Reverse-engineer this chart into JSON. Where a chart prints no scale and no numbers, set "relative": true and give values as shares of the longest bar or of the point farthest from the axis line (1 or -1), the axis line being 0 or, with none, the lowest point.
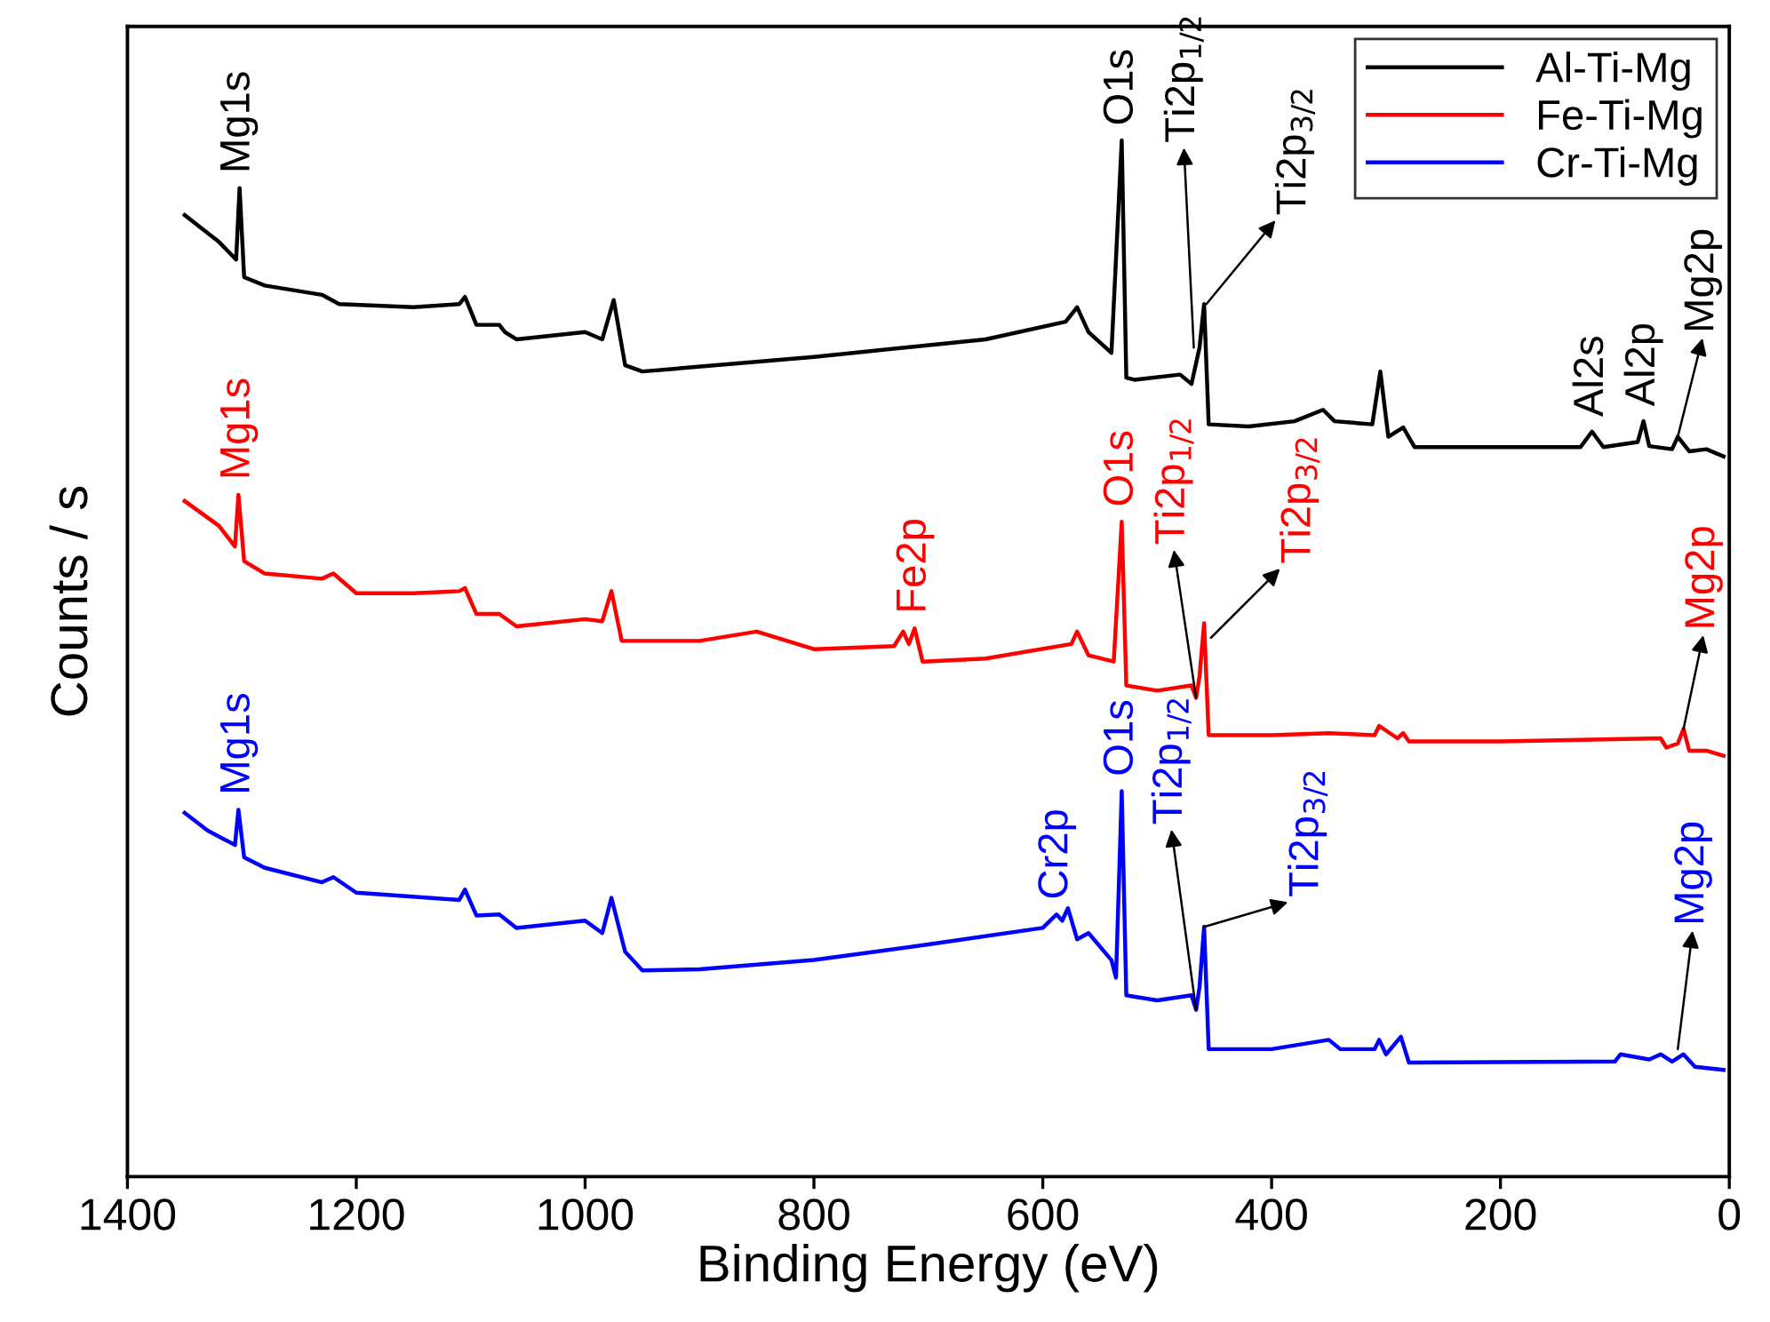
{
  "chart_data": {
    "type": "line",
    "relative": true,
    "xlabel": "Binding Energy (eV)",
    "ylabel": "Counts / s",
    "xlim": [
      1400,
      0
    ],
    "xticks": [
      1400,
      1200,
      1000,
      800,
      600,
      400,
      200,
      0
    ],
    "legend": "top right",
    "grid": false,
    "marker": "none",
    "line_style": "solid",
    "series": [
      {
        "name": "Al-Ti-Mg",
        "color": "#000000",
        "x": [
          1350,
          1320,
          1305,
          1302,
          1298,
          1280,
          1230,
          1215,
          1150,
          1110,
          1105,
          1095,
          1075,
          1070,
          1060,
          1000,
          985,
          975,
          965,
          950,
          800,
          650,
          580,
          570,
          560,
          540,
          531,
          527,
          520,
          480,
          470,
          463,
          459,
          455,
          420,
          380,
          355,
          345,
          312,
          305,
          298,
          285,
          275,
          130,
          120,
          110,
          80,
          75,
          70,
          50,
          45,
          35,
          20,
          5
        ],
        "values": [
          0.928,
          0.902,
          0.885,
          0.954,
          0.868,
          0.86,
          0.851,
          0.842,
          0.839,
          0.842,
          0.849,
          0.822,
          0.822,
          0.815,
          0.808,
          0.815,
          0.808,
          0.846,
          0.783,
          0.777,
          0.791,
          0.808,
          0.825,
          0.839,
          0.815,
          0.795,
          1.0,
          0.771,
          0.769,
          0.774,
          0.765,
          0.8,
          0.842,
          0.726,
          0.724,
          0.729,
          0.74,
          0.729,
          0.726,
          0.777,
          0.714,
          0.723,
          0.704,
          0.704,
          0.719,
          0.704,
          0.709,
          0.729,
          0.705,
          0.702,
          0.714,
          0.7,
          0.702,
          0.695
        ]
      },
      {
        "name": "Fe-Ti-Mg",
        "color": "#ff0000",
        "x": [
          1350,
          1320,
          1306,
          1303,
          1298,
          1280,
          1230,
          1220,
          1200,
          1150,
          1110,
          1105,
          1095,
          1075,
          1060,
          1000,
          985,
          977,
          968,
          900,
          850,
          800,
          730,
          722,
          717,
          712,
          705,
          650,
          575,
          570,
          560,
          538,
          531,
          527,
          500,
          470,
          466,
          463,
          459,
          455,
          400,
          350,
          310,
          306,
          290,
          285,
          280,
          200,
          60,
          55,
          45,
          40,
          35,
          20,
          5
        ],
        "values": [
          0.652,
          0.628,
          0.608,
          0.658,
          0.594,
          0.582,
          0.577,
          0.582,
          0.563,
          0.563,
          0.565,
          0.568,
          0.543,
          0.543,
          0.531,
          0.538,
          0.536,
          0.565,
          0.517,
          0.517,
          0.526,
          0.509,
          0.512,
          0.526,
          0.514,
          0.529,
          0.497,
          0.5,
          0.514,
          0.526,
          0.503,
          0.497,
          0.632,
          0.474,
          0.469,
          0.474,
          0.462,
          0.483,
          0.534,
          0.426,
          0.426,
          0.428,
          0.426,
          0.435,
          0.423,
          0.428,
          0.42,
          0.42,
          0.423,
          0.414,
          0.418,
          0.432,
          0.411,
          0.411,
          0.406
        ]
      },
      {
        "name": "Cr-Ti-Mg",
        "color": "#0000ff",
        "x": [
          1350,
          1330,
          1306,
          1303,
          1298,
          1280,
          1230,
          1220,
          1200,
          1110,
          1105,
          1095,
          1075,
          1060,
          1000,
          985,
          977,
          965,
          950,
          900,
          800,
          700,
          600,
          588,
          583,
          578,
          570,
          560,
          540,
          536,
          531,
          527,
          500,
          470,
          466,
          463,
          459,
          455,
          400,
          350,
          340,
          310,
          306,
          300,
          287,
          280,
          100,
          95,
          70,
          60,
          50,
          40,
          30,
          5
        ],
        "values": [
          0.351,
          0.334,
          0.32,
          0.354,
          0.308,
          0.298,
          0.284,
          0.289,
          0.274,
          0.267,
          0.277,
          0.252,
          0.253,
          0.24,
          0.247,
          0.235,
          0.269,
          0.217,
          0.199,
          0.2,
          0.209,
          0.224,
          0.24,
          0.253,
          0.247,
          0.259,
          0.229,
          0.235,
          0.209,
          0.192,
          0.372,
          0.175,
          0.17,
          0.175,
          0.161,
          0.183,
          0.241,
          0.123,
          0.123,
          0.132,
          0.123,
          0.123,
          0.132,
          0.118,
          0.135,
          0.11,
          0.111,
          0.118,
          0.113,
          0.118,
          0.111,
          0.118,
          0.106,
          0.103
        ]
      }
    ],
    "annotations": [
      {
        "text": "Mg1s",
        "x": 1303,
        "y": 0.954
      },
      {
        "text": "O1s",
        "x": 531,
        "y": 1.0
      },
      {
        "text": "Ti2p$_{1/2}$",
        "x": 468,
        "y": 0.8
      },
      {
        "text": "Ti2p$_{3/2}$",
        "x": 457,
        "y": 0.842
      },
      {
        "text": "Al2s",
        "x": 120,
        "y": 0.719
      },
      {
        "text": "Al2p",
        "x": 75,
        "y": 0.729
      },
      {
        "text": "Mg2p",
        "x": 45,
        "y": 0.714
      },
      {
        "text": "Mg1s",
        "x": 1303,
        "y": 0.658
      },
      {
        "text": "Fe2p",
        "x": 712,
        "y": 0.529
      },
      {
        "text": "O1s",
        "x": 531,
        "y": 0.632
      },
      {
        "text": "Ti2p$_{1/2}$",
        "x": 466,
        "y": 0.462
      },
      {
        "text": "Ti2p$_{3/2}$",
        "x": 453,
        "y": 0.52
      },
      {
        "text": "Mg2p",
        "x": 40,
        "y": 0.432
      },
      {
        "text": "Mg1s",
        "x": 1303,
        "y": 0.354
      },
      {
        "text": "Cr2p",
        "x": 588,
        "y": 0.253
      },
      {
        "text": "O1s",
        "x": 531,
        "y": 0.372
      },
      {
        "text": "Ti2p$_{1/2}$",
        "x": 466,
        "y": 0.161
      },
      {
        "text": "Ti2p$_{3/2}$",
        "x": 459,
        "y": 0.241
      },
      {
        "text": "Mg2p",
        "x": 45,
        "y": 0.123
      }
    ]
  }
}
